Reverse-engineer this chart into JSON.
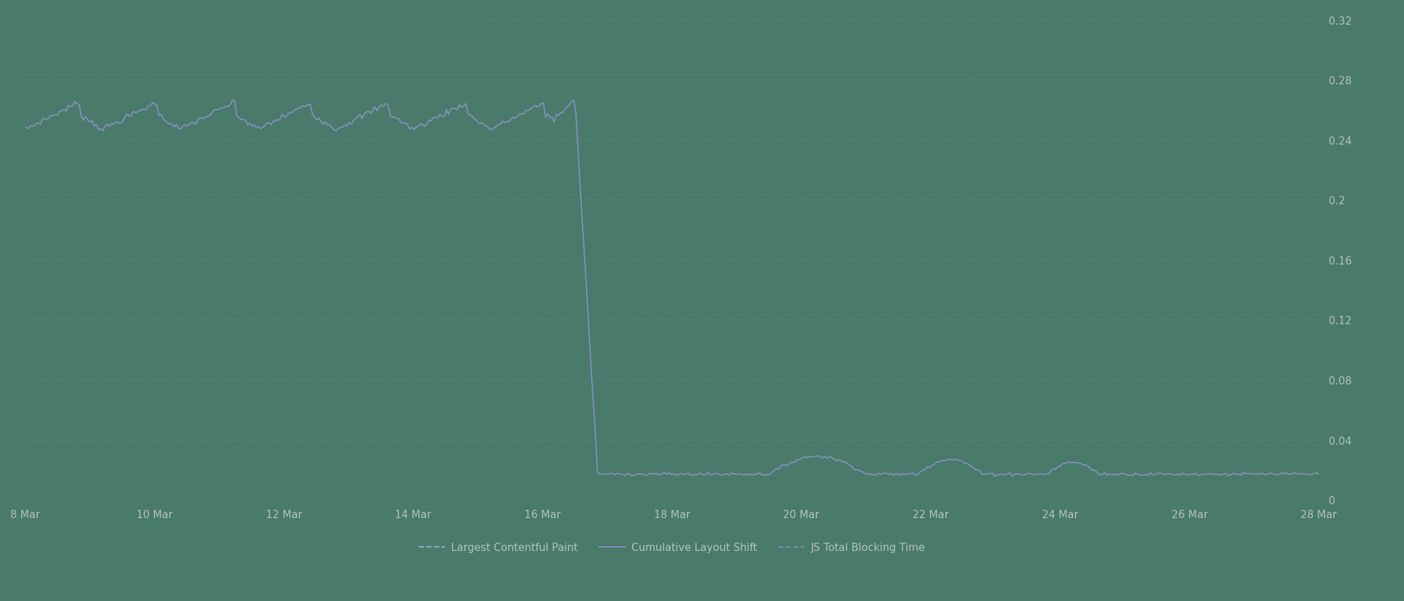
{
  "background_color": "#4a7a6a",
  "grid_color": "#6a9a8a",
  "line_color_cls": "#8090b8",
  "line_color_lcp": "#9aa8c8",
  "line_color_tbt": "#7a90a8",
  "text_color": "#b0c4c0",
  "ylim": [
    0,
    0.32
  ],
  "yticks": [
    0,
    0.04,
    0.08,
    0.12,
    0.16,
    0.2,
    0.24,
    0.28,
    0.32
  ],
  "ytick_labels": [
    "0",
    "0.04",
    "0.08",
    "0.12",
    "0.16",
    "0.2",
    "0.24",
    "0.28",
    "0.32"
  ],
  "xtick_labels": [
    "8 Mar",
    "10 Mar",
    "12 Mar",
    "14 Mar",
    "16 Mar",
    "18 Mar",
    "20 Mar",
    "22 Mar",
    "24 Mar",
    "26 Mar",
    "28 Mar"
  ],
  "legend_labels": [
    "Largest Contentful Paint",
    "Cumulative Layout Shift",
    "JS Total Blocking Time"
  ],
  "legend_colors": [
    "#9aa8c8",
    "#8090b8",
    "#7a90a8"
  ],
  "legend_styles": [
    "--",
    "-",
    "--"
  ],
  "total_days": 20,
  "drop_day": 8.5,
  "cls_base": 0.255,
  "cls_peak": 0.267,
  "cls_low": 0.017
}
